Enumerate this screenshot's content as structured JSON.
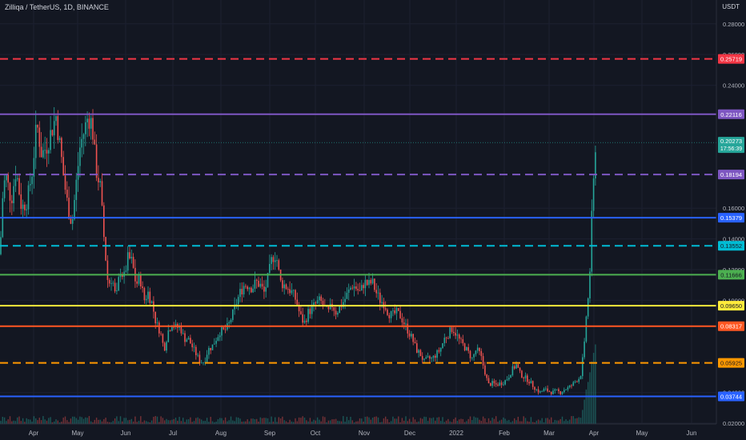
{
  "header": {
    "title": "Zilliqa / TetherUS, 1D, BINANCE",
    "unit": "USDT"
  },
  "chart_data": {
    "type": "candlestick",
    "ylim": [
      0.0195,
      0.2955
    ],
    "y_ticks": [
      {
        "value": 0.28,
        "label": "0.28000"
      },
      {
        "value": 0.26,
        "label": "0.26000"
      },
      {
        "value": 0.24,
        "label": "0.24000"
      },
      {
        "value": 0.16,
        "label": "0.16000"
      },
      {
        "value": 0.14,
        "label": "0.14000"
      },
      {
        "value": 0.12,
        "label": "0.12000"
      },
      {
        "value": 0.1,
        "label": "0.10000"
      },
      {
        "value": 0.04,
        "label": "0.04000"
      },
      {
        "value": 0.02,
        "label": "0.02000"
      }
    ],
    "x_labels": [
      "Apr",
      "May",
      "Jun",
      "Jul",
      "Aug",
      "Sep",
      "Oct",
      "Nov",
      "Dec",
      "2022",
      "Feb",
      "Mar",
      "Apr",
      "May",
      "Jun"
    ],
    "current_price": {
      "value": 0.20273,
      "label": "0.20273",
      "countdown": "17:56:39",
      "color": "#26a69a"
    },
    "levels": [
      {
        "value": 0.25719,
        "label": "0.25719",
        "color": "#f23645",
        "style": "dashed"
      },
      {
        "value": 0.22116,
        "label": "0.22116",
        "color": "#7e57c2",
        "style": "solid"
      },
      {
        "value": 0.18194,
        "label": "0.18194",
        "color": "#7e57c2",
        "style": "dashed"
      },
      {
        "value": 0.15379,
        "label": "0.15379",
        "color": "#2962ff",
        "style": "solid"
      },
      {
        "value": 0.13552,
        "label": "0.13552",
        "color": "#00bcd4",
        "style": "dashed"
      },
      {
        "value": 0.11666,
        "label": "0.11666",
        "color": "#4caf50",
        "style": "solid"
      },
      {
        "value": 0.0965,
        "label": "0.09650",
        "color": "#ffeb3b",
        "style": "solid"
      },
      {
        "value": 0.08317,
        "label": "0.08317",
        "color": "#ff5722",
        "style": "solid"
      },
      {
        "value": 0.05925,
        "label": "0.05925",
        "color": "#ff9800",
        "style": "dashed"
      },
      {
        "value": 0.03744,
        "label": "0.03744",
        "color": "#2962ff",
        "style": "solid"
      }
    ],
    "series": [
      {
        "anchors": [
          [
            0,
            0.13
          ],
          [
            4,
            0.175
          ],
          [
            8,
            0.18
          ],
          [
            14,
            0.165
          ],
          [
            20,
            0.185
          ],
          [
            27,
            0.16
          ],
          [
            34,
            0.165
          ],
          [
            40,
            0.183
          ],
          [
            46,
            0.215
          ],
          [
            52,
            0.195
          ],
          [
            58,
            0.2
          ],
          [
            64,
            0.21
          ],
          [
            70,
            0.22
          ],
          [
            75,
            0.2
          ],
          [
            80,
            0.178
          ],
          [
            85,
            0.16
          ],
          [
            90,
            0.15
          ],
          [
            95,
            0.175
          ],
          [
            100,
            0.2
          ],
          [
            105,
            0.21
          ],
          [
            110,
            0.22
          ],
          [
            115,
            0.215
          ],
          [
            120,
            0.185
          ],
          [
            125,
            0.175
          ],
          [
            130,
            0.14
          ],
          [
            135,
            0.11
          ],
          [
            140,
            0.115
          ],
          [
            145,
            0.1
          ],
          [
            150,
            0.12
          ],
          [
            155,
            0.115
          ],
          [
            160,
            0.128
          ],
          [
            165,
            0.125
          ],
          [
            170,
            0.11
          ],
          [
            175,
            0.115
          ],
          [
            180,
            0.1
          ],
          [
            185,
            0.105
          ],
          [
            190,
            0.098
          ],
          [
            195,
            0.085
          ],
          [
            200,
            0.08
          ],
          [
            205,
            0.068
          ],
          [
            210,
            0.08
          ],
          [
            215,
            0.085
          ],
          [
            220,
            0.082
          ],
          [
            225,
            0.083
          ],
          [
            230,
            0.075
          ],
          [
            235,
            0.075
          ],
          [
            240,
            0.07
          ],
          [
            245,
            0.065
          ],
          [
            250,
            0.06
          ],
          [
            255,
            0.06
          ],
          [
            260,
            0.068
          ],
          [
            265,
            0.07
          ],
          [
            270,
            0.075
          ],
          [
            275,
            0.08
          ],
          [
            280,
            0.08
          ],
          [
            285,
            0.083
          ],
          [
            290,
            0.09
          ],
          [
            295,
            0.098
          ],
          [
            300,
            0.105
          ],
          [
            305,
            0.11
          ],
          [
            310,
            0.11
          ],
          [
            315,
            0.108
          ],
          [
            320,
            0.112
          ],
          [
            325,
            0.11
          ],
          [
            330,
            0.105
          ],
          [
            335,
            0.115
          ],
          [
            340,
            0.128
          ],
          [
            345,
            0.13
          ],
          [
            350,
            0.112
          ],
          [
            355,
            0.11
          ],
          [
            360,
            0.108
          ],
          [
            365,
            0.105
          ],
          [
            370,
            0.1
          ],
          [
            375,
            0.09
          ],
          [
            380,
            0.085
          ],
          [
            385,
            0.092
          ],
          [
            390,
            0.095
          ],
          [
            395,
            0.098
          ],
          [
            400,
            0.1
          ],
          [
            405,
            0.095
          ],
          [
            410,
            0.092
          ],
          [
            415,
            0.097
          ],
          [
            420,
            0.092
          ],
          [
            425,
            0.096
          ],
          [
            430,
            0.1
          ],
          [
            435,
            0.105
          ],
          [
            440,
            0.11
          ],
          [
            445,
            0.108
          ],
          [
            450,
            0.105
          ],
          [
            455,
            0.112
          ],
          [
            460,
            0.11
          ],
          [
            465,
            0.112
          ],
          [
            470,
            0.105
          ],
          [
            475,
            0.1
          ],
          [
            480,
            0.098
          ],
          [
            485,
            0.092
          ],
          [
            490,
            0.09
          ],
          [
            495,
            0.092
          ],
          [
            500,
            0.09
          ],
          [
            505,
            0.085
          ],
          [
            510,
            0.08
          ],
          [
            515,
            0.075
          ],
          [
            520,
            0.068
          ],
          [
            525,
            0.065
          ],
          [
            530,
            0.06
          ],
          [
            535,
            0.062
          ],
          [
            540,
            0.062
          ],
          [
            545,
            0.065
          ],
          [
            550,
            0.068
          ],
          [
            555,
            0.075
          ],
          [
            560,
            0.078
          ],
          [
            565,
            0.082
          ],
          [
            570,
            0.078
          ],
          [
            575,
            0.073
          ],
          [
            580,
            0.07
          ],
          [
            585,
            0.066
          ],
          [
            590,
            0.062
          ],
          [
            595,
            0.068
          ],
          [
            600,
            0.065
          ],
          [
            605,
            0.055
          ],
          [
            610,
            0.045
          ],
          [
            615,
            0.046
          ],
          [
            620,
            0.045
          ],
          [
            625,
            0.046
          ],
          [
            630,
            0.047
          ],
          [
            635,
            0.05
          ],
          [
            640,
            0.055
          ],
          [
            645,
            0.058
          ],
          [
            650,
            0.052
          ],
          [
            655,
            0.05
          ],
          [
            660,
            0.048
          ],
          [
            665,
            0.045
          ],
          [
            670,
            0.042
          ],
          [
            675,
            0.04
          ],
          [
            680,
            0.042
          ],
          [
            685,
            0.041
          ],
          [
            690,
            0.04
          ],
          [
            695,
            0.041
          ],
          [
            700,
            0.04
          ],
          [
            705,
            0.042
          ],
          [
            710,
            0.043
          ],
          [
            715,
            0.045
          ],
          [
            720,
            0.048
          ],
          [
            725,
            0.05
          ],
          [
            730,
            0.07
          ],
          [
            733,
            0.095
          ],
          [
            736,
            0.105
          ],
          [
            739,
            0.15
          ],
          [
            742,
            0.18
          ],
          [
            744,
            0.203
          ]
        ]
      }
    ]
  }
}
